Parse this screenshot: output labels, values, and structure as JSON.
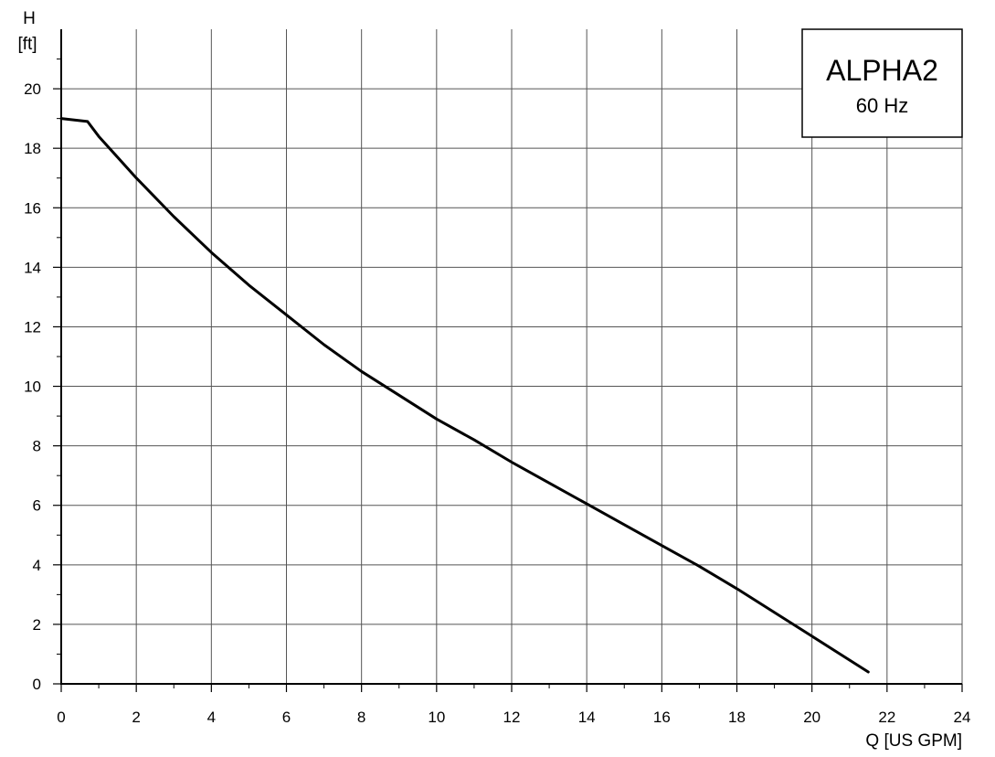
{
  "chart_data": {
    "type": "line",
    "xlabel": "Q [US GPM]",
    "ylabel_symbol": "H",
    "ylabel_unit": "[ft]",
    "xlim": [
      0,
      24
    ],
    "ylim": [
      0,
      22
    ],
    "x_ticks": [
      0,
      2,
      4,
      6,
      8,
      10,
      12,
      14,
      16,
      18,
      20,
      22,
      24
    ],
    "y_ticks": [
      0,
      2,
      4,
      6,
      8,
      10,
      12,
      14,
      16,
      18,
      20
    ],
    "grid": true,
    "legend_box": {
      "title": "ALPHA2",
      "subtitle": "60 Hz",
      "placement": "top-right"
    },
    "line_color": "#000000",
    "series": [
      {
        "x": [
          0,
          0.7,
          1,
          2,
          3,
          4,
          5,
          6,
          7,
          8,
          9,
          10,
          11,
          12,
          13,
          14,
          15,
          16,
          17,
          18,
          19,
          20,
          21,
          21.5
        ],
        "y": [
          19.0,
          18.9,
          18.4,
          17.0,
          15.7,
          14.5,
          13.4,
          12.4,
          11.4,
          10.5,
          9.7,
          8.9,
          8.2,
          7.45,
          6.75,
          6.05,
          5.35,
          4.65,
          3.95,
          3.2,
          2.4,
          1.6,
          0.8,
          0.4
        ]
      }
    ]
  }
}
